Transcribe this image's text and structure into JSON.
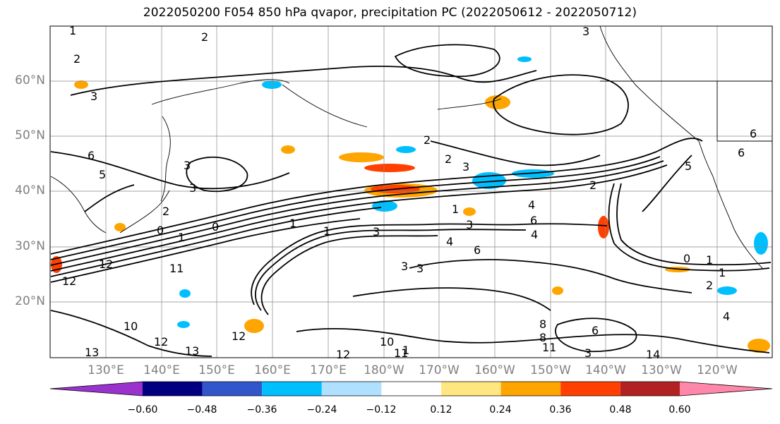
{
  "title": "2022050200 F054 850 hPa qvapor, precipitation PC (2022050612 - 2022050712)",
  "lat_labels": [
    "60°N",
    "50°N",
    "40°N",
    "30°N",
    "20°N"
  ],
  "lon_labels": [
    "130°E",
    "140°E",
    "150°E",
    "160°E",
    "170°E",
    "180°W",
    "170°W",
    "160°W",
    "150°W",
    "140°W",
    "130°W",
    "120°W"
  ],
  "colorbar": {
    "colors": [
      "#9933cc",
      "#000080",
      "#3355cc",
      "#00bfff",
      "#b0e0ff",
      "#ffffff",
      "#ffe680",
      "#ffa500",
      "#ff4000",
      "#b22222",
      "#ff88aa"
    ],
    "ticks": [
      "−0.60",
      "−0.48",
      "−0.36",
      "−0.24",
      "−0.12",
      "0.12",
      "0.24",
      "0.36",
      "0.48",
      "0.60"
    ]
  },
  "contour_labels": [
    "1",
    "2",
    "3",
    "2",
    "3",
    "2",
    "2",
    "3",
    "3",
    "6",
    "5",
    "3",
    "2",
    "1",
    "0",
    "0",
    "1",
    "1",
    "3",
    "3",
    "4",
    "6",
    "4",
    "6",
    "4",
    "3",
    "3",
    "2",
    "0",
    "1",
    "2",
    "1",
    "1",
    "12",
    "11",
    "12",
    "10",
    "13",
    "13",
    "12",
    "12",
    "11",
    "12",
    "10",
    "8",
    "8",
    "6",
    "4",
    "3",
    "11",
    "14",
    "1",
    "5",
    "6",
    "6"
  ]
}
